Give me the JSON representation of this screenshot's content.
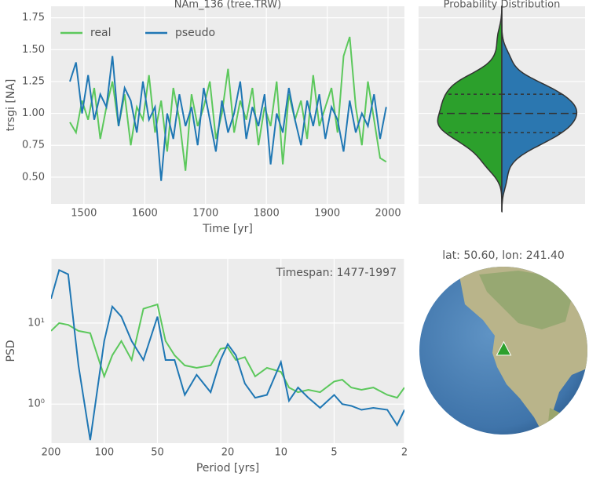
{
  "chart_data": [
    {
      "type": "line",
      "title": "NAm_136 (tree.TRW)",
      "xlabel": "Time [yr]",
      "ylabel": "trsgi [NA]",
      "x": [
        1477,
        1487,
        1497,
        1507,
        1517,
        1527,
        1537,
        1547,
        1557,
        1567,
        1577,
        1587,
        1597,
        1607,
        1617,
        1627,
        1637,
        1647,
        1657,
        1667,
        1677,
        1687,
        1697,
        1707,
        1717,
        1727,
        1737,
        1747,
        1757,
        1767,
        1777,
        1787,
        1797,
        1807,
        1817,
        1827,
        1837,
        1847,
        1857,
        1867,
        1877,
        1887,
        1897,
        1907,
        1917,
        1927,
        1937,
        1947,
        1957,
        1967,
        1977,
        1987,
        1997
      ],
      "series": [
        {
          "name": "real",
          "color": "#5cc85c",
          "values": [
            0.93,
            0.85,
            1.1,
            0.95,
            1.2,
            0.8,
            1.05,
            1.25,
            0.9,
            1.15,
            0.75,
            1.05,
            0.95,
            1.3,
            0.85,
            1.1,
            0.7,
            1.2,
            0.95,
            0.55,
            1.15,
            0.9,
            1.05,
            1.25,
            0.8,
            1.0,
            1.35,
            0.85,
            1.1,
            0.95,
            1.2,
            0.75,
            1.05,
            0.9,
            1.25,
            0.6,
            1.15,
            0.95,
            1.1,
            0.8,
            1.3,
            0.9,
            1.05,
            1.2,
            0.85,
            1.45,
            1.6,
            1.05,
            0.75,
            1.25,
            0.95,
            0.65,
            0.62
          ]
        },
        {
          "name": "pseudo",
          "color": "#1f77b4",
          "values": [
            1.25,
            1.4,
            1.0,
            1.3,
            0.95,
            1.15,
            1.05,
            1.45,
            0.9,
            1.2,
            1.1,
            0.85,
            1.25,
            0.95,
            1.05,
            0.47,
            1.0,
            0.8,
            1.15,
            0.9,
            1.05,
            0.75,
            1.2,
            0.95,
            0.7,
            1.1,
            0.85,
            1.0,
            1.25,
            0.8,
            1.05,
            0.9,
            1.15,
            0.6,
            1.0,
            0.85,
            1.2,
            0.95,
            0.75,
            1.1,
            0.9,
            1.15,
            0.8,
            1.05,
            0.95,
            0.7,
            1.1,
            0.85,
            1.0,
            0.9,
            1.15,
            0.8,
            1.05
          ]
        }
      ],
      "xlim": [
        1446,
        2027
      ],
      "ylim": [
        0.29,
        1.84
      ],
      "xticks": [
        1500,
        1600,
        1700,
        1800,
        1900,
        2000
      ],
      "yticks": [
        {
          "value": 0.5,
          "label": "0.50"
        },
        0.75,
        {
          "value": 1,
          "label": "1.00"
        },
        1.25,
        {
          "value": 1.5,
          "label": "1.50"
        },
        1.75
      ],
      "grid": true,
      "legend": "upper left"
    },
    {
      "type": "violin",
      "title": "Probability Distribution",
      "source": "chart_data.0",
      "colors": [
        "#2ca02c",
        "#2b77b0"
      ]
    },
    {
      "type": "line",
      "annotation": "Timespan: 1477-1997",
      "xlabel": "Period [yrs]",
      "ylabel": "PSD",
      "x": [
        200,
        180,
        160,
        140,
        120,
        100,
        90,
        80,
        70,
        60,
        50,
        45,
        40,
        35,
        30,
        25,
        22,
        20,
        18,
        16,
        14,
        12,
        10,
        9,
        8,
        7,
        6,
        5,
        4.5,
        4,
        3.5,
        3,
        2.5,
        2.2,
        2
      ],
      "series": [
        {
          "color": "#5cc85c",
          "values": [
            8,
            10,
            9.5,
            8,
            7.5,
            2.2,
            4,
            6,
            3.5,
            15,
            17,
            6,
            4,
            3,
            2.8,
            3,
            4.8,
            5,
            3.5,
            3.8,
            2.2,
            2.8,
            2.5,
            1.6,
            1.4,
            1.5,
            1.4,
            1.9,
            2,
            1.6,
            1.5,
            1.6,
            1.3,
            1.2,
            1.6
          ]
        },
        {
          "color": "#1f77b4",
          "values": [
            20,
            45,
            40,
            3,
            0.36,
            6,
            16,
            12,
            6,
            3.5,
            12,
            3.5,
            3.5,
            1.3,
            2.3,
            1.4,
            3.5,
            5.5,
            4,
            1.8,
            1.2,
            1.3,
            3.3,
            1.1,
            1.6,
            1.2,
            0.9,
            1.3,
            1.0,
            0.95,
            0.85,
            0.9,
            0.85,
            0.55,
            0.85
          ]
        }
      ],
      "xlim": [
        200,
        2
      ],
      "ylim": [
        0.33,
        62
      ],
      "xlog": true,
      "ylog": true,
      "xticks": [
        200,
        100,
        50,
        20,
        10,
        5,
        2
      ],
      "yticks": [
        {
          "value": 1,
          "label": "10⁰"
        },
        {
          "value": 10,
          "label": "10¹"
        }
      ],
      "grid": true
    },
    {
      "type": "map",
      "title": "lat: 50.60, lon: 241.40",
      "lat": 50.6,
      "lon": 241.4,
      "marker_color": "#2ca02c"
    }
  ]
}
